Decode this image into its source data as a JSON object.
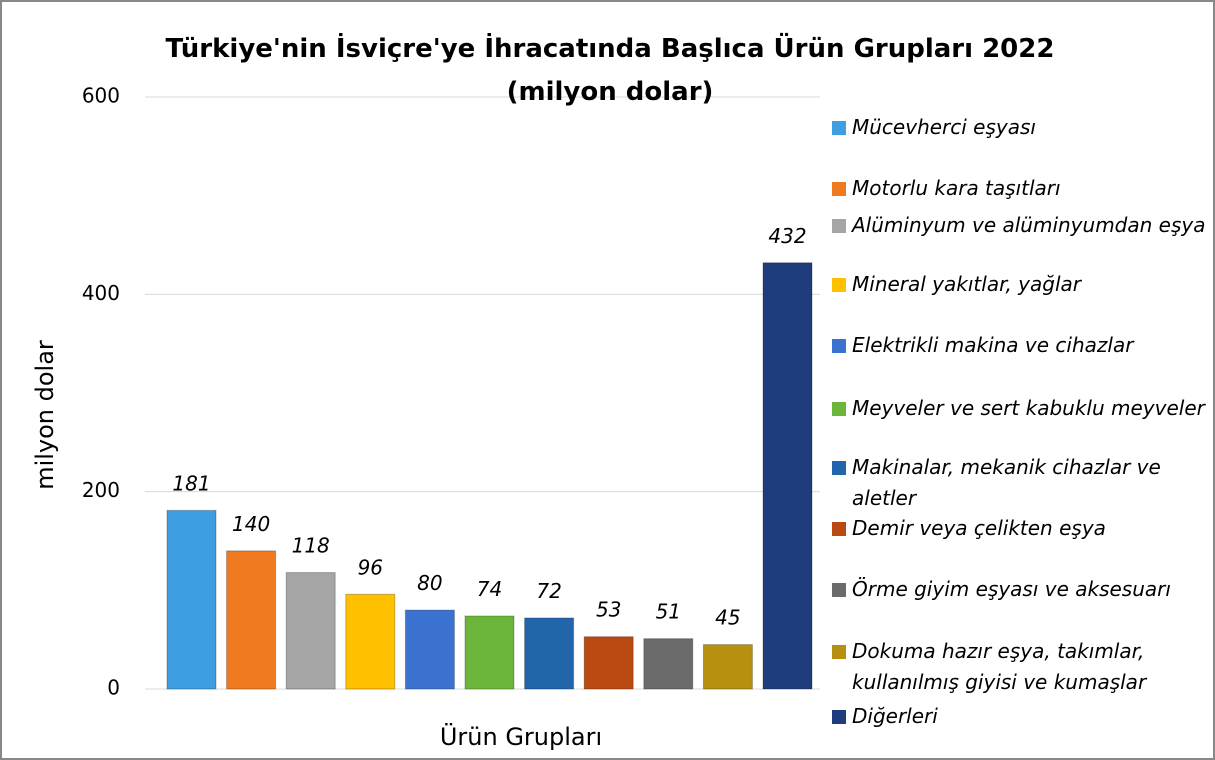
{
  "chart_data": {
    "type": "bar",
    "title": "Türkiye'nin İsviçre'ye İhracatında Başlıca Ürün Grupları 2022 (milyon dolar)",
    "x_label": "Ürün Grupları",
    "y_label": "milyon dolar",
    "ylim": [
      0,
      600
    ],
    "yticks": [
      0,
      200,
      400,
      600
    ],
    "grid": true,
    "legend": "right",
    "series": [
      {
        "name": "Mücevherci eşyası",
        "color": "#3e9ee0",
        "values": [
          181
        ]
      },
      {
        "name": "Motorlu kara taşıtları",
        "color": "#f07a1f",
        "values": [
          140
        ]
      },
      {
        "name": "Alüminyum ve alüminyumdan eşya",
        "color": "#a5a5a5",
        "values": [
          118
        ]
      },
      {
        "name": "Mineral yakıtlar, yağlar",
        "color": "#ffc000",
        "values": [
          96
        ]
      },
      {
        "name": "Elektrikli makina ve cihazlar",
        "color": "#3b72d0",
        "values": [
          80
        ]
      },
      {
        "name": "Meyveler ve sert kabuklu meyveler",
        "color": "#6bb63a",
        "values": [
          74
        ]
      },
      {
        "name": "Makinalar, mekanik cihazlar ve aletler",
        "color": "#2166ab",
        "values": [
          72
        ]
      },
      {
        "name": "Demir veya çelikten eşya",
        "color": "#b84a12",
        "values": [
          53
        ]
      },
      {
        "name": "Örme giyim eşyası ve aksesuarı",
        "color": "#6b6b6b",
        "values": [
          51
        ]
      },
      {
        "name": "Dokuma hazır eşya, takımlar, kullanılmış giyisi ve kumaşlar",
        "color": "#b8900f",
        "values": [
          45
        ]
      },
      {
        "name": "Diğerleri",
        "color": "#1f3d7c",
        "values": [
          432
        ]
      }
    ]
  }
}
